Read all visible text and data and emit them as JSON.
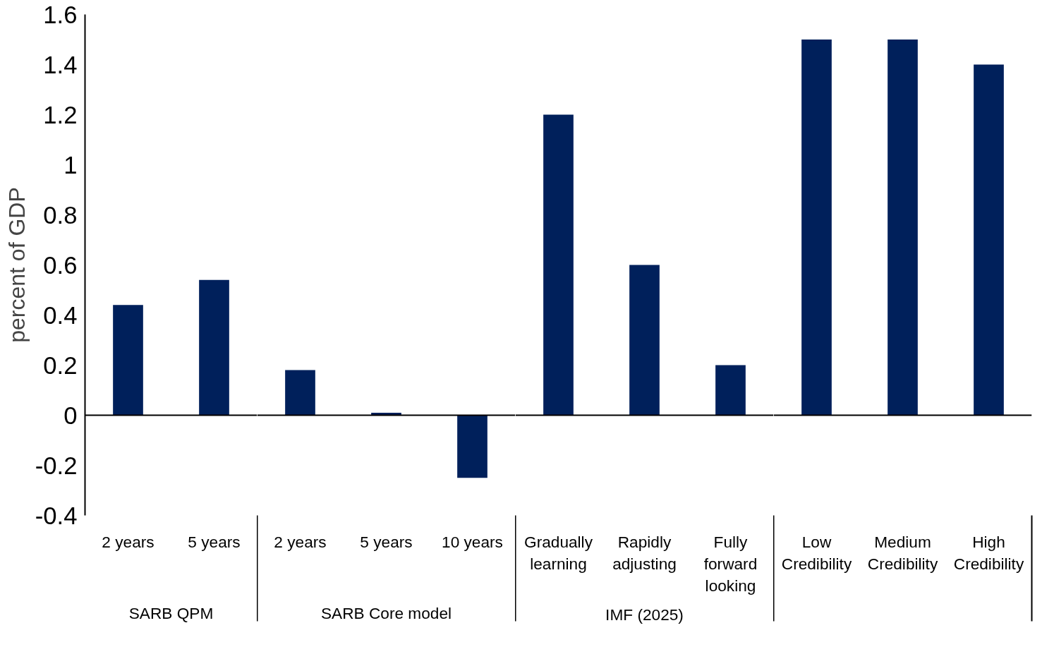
{
  "chart_data": [
    {
      "type": "bar",
      "ylabel": "percent of GDP",
      "xlabel": "SARB QPM",
      "categories": [
        "2 years",
        "5 years"
      ],
      "values": [
        0.44,
        0.54
      ],
      "color": "#00205b",
      "ylim": [
        -0.4,
        1.6
      ],
      "yticks": [
        -0.4,
        -0.2,
        0,
        0.2,
        0.4,
        0.6,
        0.8,
        1,
        1.2,
        1.4,
        1.6
      ]
    },
    {
      "type": "bar",
      "xlabel": "SARB Core model",
      "categories": [
        "2 years",
        "5 years",
        "10 years"
      ],
      "values": [
        0.18,
        0.01,
        -0.25
      ],
      "color": "#00205b",
      "ylim": [
        -0.4,
        1.6
      ],
      "yticks": [
        -0.4,
        -0.2,
        0,
        0.2,
        0.4,
        0.6,
        0.8,
        1,
        1.2,
        1.4,
        1.6
      ],
      "tick_labels": "x"
    },
    {
      "type": "bar",
      "xlabel": "IMF (2025)",
      "categories": [
        "Gradually learning",
        "Rapidly adjusting",
        "Fully forward looking"
      ],
      "values": [
        1.2,
        0.6,
        0.2
      ],
      "color": "#00205b",
      "ylim": [
        -0.4,
        1.6
      ],
      "yticks": [
        -0.4,
        -0.2,
        0,
        0.2,
        0.4,
        0.6,
        0.8,
        1,
        1.2,
        1.4,
        1.6
      ],
      "tick_labels": "x"
    },
    {
      "type": "bar",
      "categories": [
        "Low Credibility",
        "Medium Credibility",
        "High Credibility"
      ],
      "values": [
        1.5,
        1.5,
        1.4
      ],
      "color": "#00205b",
      "ylim": [
        -0.4,
        1.6
      ],
      "yticks": [
        -0.4,
        -0.2,
        0,
        0.2,
        0.4,
        0.6,
        0.8,
        1,
        1.2,
        1.4,
        1.6
      ],
      "tick_labels": "x"
    }
  ]
}
